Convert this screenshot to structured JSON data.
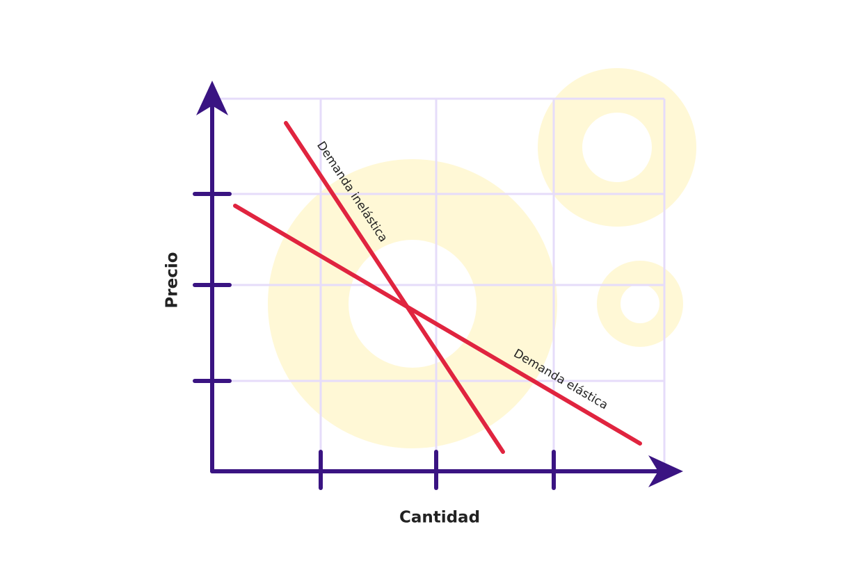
{
  "axes": {
    "y_label": "Precio",
    "x_label": "Cantidad"
  },
  "curves": [
    {
      "label": "Demanda inelástica"
    },
    {
      "label": "Demanda elástica"
    }
  ]
}
